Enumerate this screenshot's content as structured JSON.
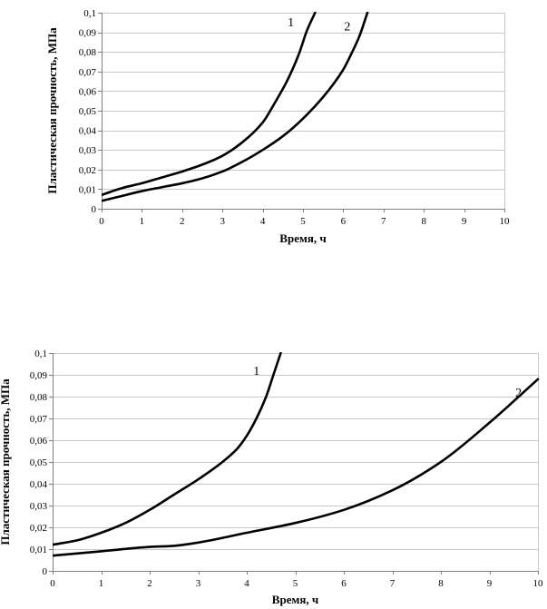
{
  "chart_data": [
    {
      "type": "line",
      "xlabel": "Время, ч",
      "ylabel": "Пластическая прочность, МПа",
      "xlim": [
        0,
        10
      ],
      "ylim": [
        0,
        0.1
      ],
      "x_ticks": [
        "0",
        "1",
        "2",
        "3",
        "4",
        "5",
        "6",
        "7",
        "8",
        "9",
        "10"
      ],
      "y_ticks": [
        "0",
        "0,01",
        "0,02",
        "0,03",
        "0,04",
        "0,05",
        "0,06",
        "0,07",
        "0,08",
        "0,09",
        "0,1"
      ],
      "grid": "horizontal",
      "series": [
        {
          "name": "1",
          "x": [
            0,
            0.5,
            1,
            1.5,
            2,
            2.5,
            3,
            3.5,
            4,
            4.3,
            4.6,
            4.9,
            5.1,
            5.3
          ],
          "y": [
            0.007,
            0.0105,
            0.013,
            0.016,
            0.019,
            0.0225,
            0.027,
            0.034,
            0.044,
            0.054,
            0.065,
            0.079,
            0.091,
            0.1
          ]
        },
        {
          "name": "2",
          "x": [
            0,
            0.5,
            1,
            1.5,
            2,
            2.5,
            3,
            3.5,
            4,
            4.5,
            5,
            5.5,
            6,
            6.2,
            6.4,
            6.6
          ],
          "y": [
            0.004,
            0.0065,
            0.009,
            0.011,
            0.013,
            0.0155,
            0.019,
            0.024,
            0.03,
            0.037,
            0.046,
            0.057,
            0.071,
            0.079,
            0.088,
            0.1
          ]
        }
      ]
    },
    {
      "type": "line",
      "xlabel": "Время, ч",
      "ylabel": "Пластическая прочность, МПа",
      "xlim": [
        0,
        10
      ],
      "ylim": [
        0,
        0.1
      ],
      "x_ticks": [
        "0",
        "1",
        "2",
        "3",
        "4",
        "5",
        "6",
        "7",
        "8",
        "9",
        "10"
      ],
      "y_ticks": [
        "0",
        "0,01",
        "0,02",
        "0,03",
        "0,04",
        "0,05",
        "0,06",
        "0,07",
        "0,08",
        "0,09",
        "0,1"
      ],
      "grid": "horizontal",
      "series": [
        {
          "name": "1",
          "x": [
            0,
            0.5,
            1,
            1.5,
            2,
            2.5,
            3,
            3.5,
            3.8,
            4,
            4.2,
            4.4,
            4.55,
            4.7
          ],
          "y": [
            0.012,
            0.014,
            0.0175,
            0.022,
            0.028,
            0.035,
            0.042,
            0.05,
            0.056,
            0.062,
            0.07,
            0.08,
            0.09,
            0.1
          ]
        },
        {
          "name": "2",
          "x": [
            0,
            1,
            2,
            2.5,
            3,
            4,
            5,
            6,
            7,
            8,
            9,
            10
          ],
          "y": [
            0.007,
            0.009,
            0.011,
            0.0115,
            0.013,
            0.0175,
            0.022,
            0.028,
            0.037,
            0.05,
            0.068,
            0.088
          ]
        }
      ]
    }
  ]
}
